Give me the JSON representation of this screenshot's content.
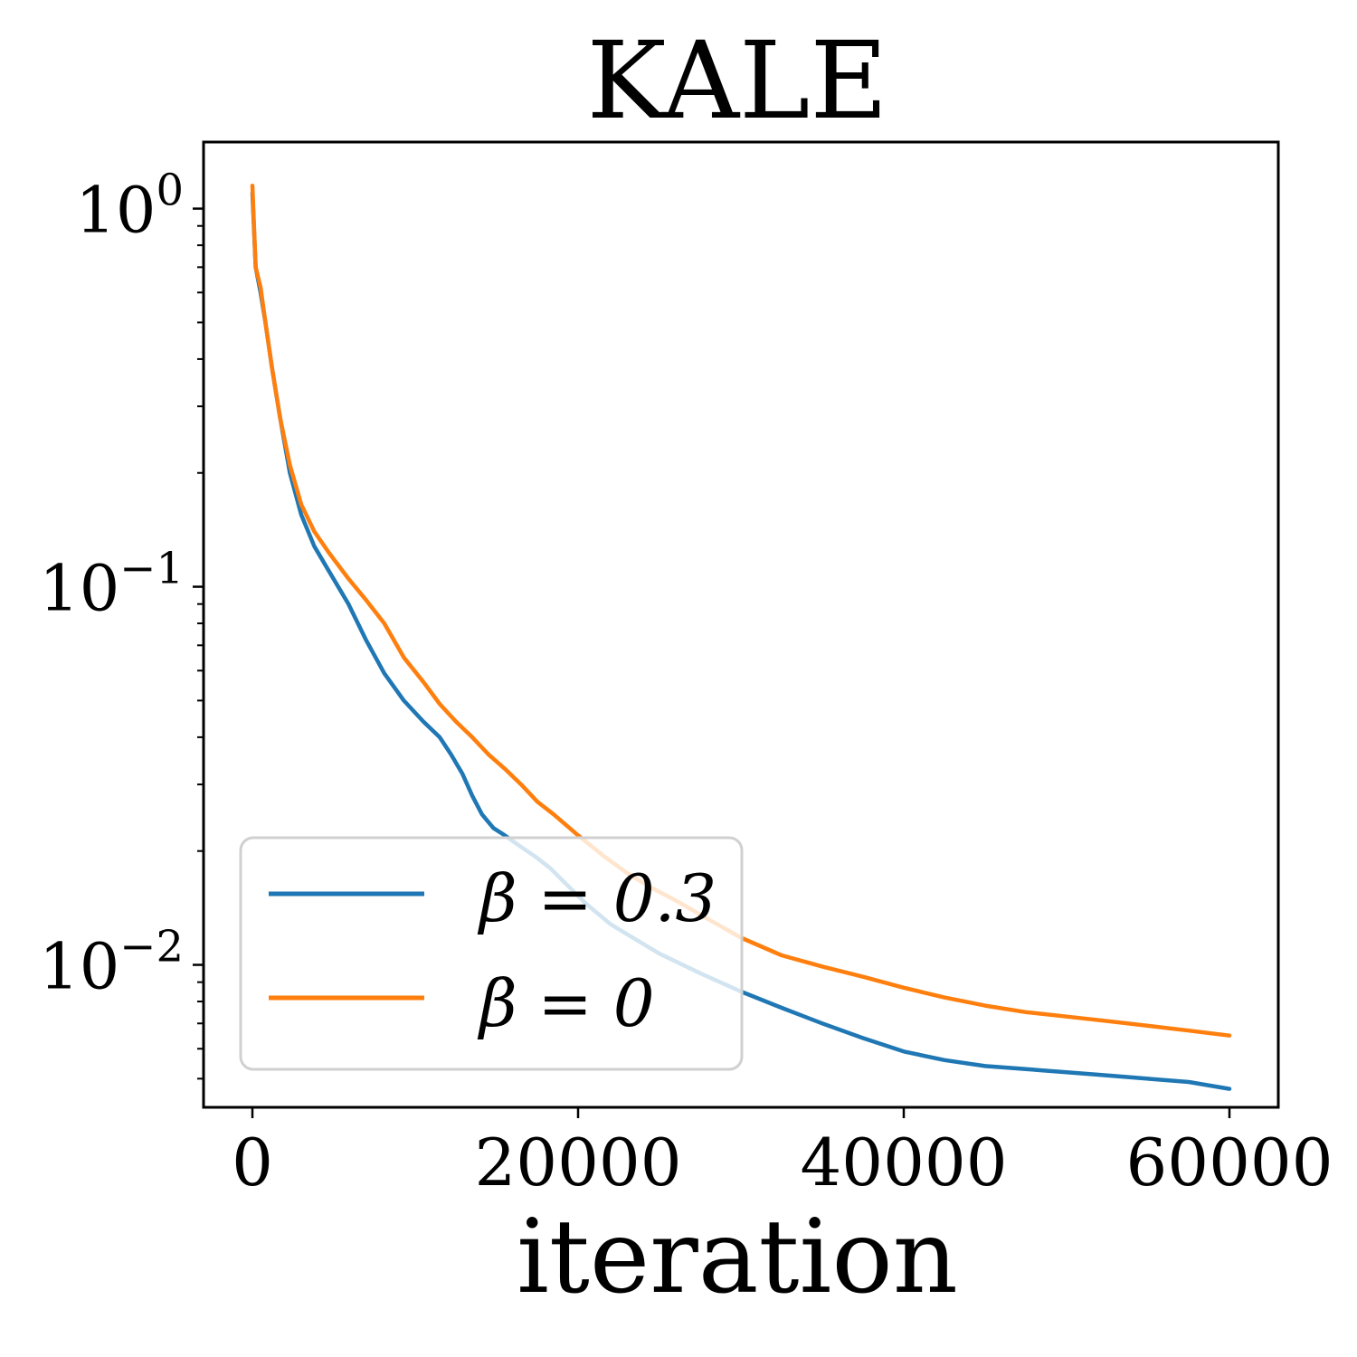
{
  "chart_data": {
    "type": "line",
    "title": "KALE",
    "xlabel": "iteration",
    "ylabel": "",
    "y_scale": "log",
    "xlim": [
      -3000,
      63000
    ],
    "ylim": [
      0.0042,
      1.5
    ],
    "x_ticks": [
      {
        "value": 0,
        "label": "0"
      },
      {
        "value": 20000,
        "label": "20000"
      },
      {
        "value": 40000,
        "label": "40000"
      },
      {
        "value": 60000,
        "label": "60000"
      }
    ],
    "y_ticks": [
      {
        "value": 1,
        "base": "10",
        "exp": "0"
      },
      {
        "value": 0.1,
        "base": "10",
        "exp": "−1"
      },
      {
        "value": 0.01,
        "base": "10",
        "exp": "−2"
      }
    ],
    "grid": false,
    "legend_position": "lower-left",
    "series": [
      {
        "name": "β = 0.3",
        "color": "#1f77b4",
        "x": [
          0,
          200,
          500,
          800,
          1200,
          1700,
          2300,
          3000,
          3800,
          4700,
          5900,
          7000,
          8100,
          9300,
          10500,
          11500,
          12200,
          12900,
          13500,
          14100,
          14800,
          15500,
          16500,
          17400,
          18300,
          19300,
          20500,
          22000,
          23500,
          25000,
          27500,
          30000,
          32500,
          35000,
          37500,
          40000,
          42500,
          45000,
          47500,
          50000,
          52500,
          55000,
          57500,
          60000
        ],
        "y": [
          1.1,
          0.7,
          0.6,
          0.5,
          0.38,
          0.28,
          0.2,
          0.155,
          0.128,
          0.11,
          0.09,
          0.072,
          0.059,
          0.05,
          0.044,
          0.04,
          0.036,
          0.032,
          0.028,
          0.025,
          0.023,
          0.022,
          0.0205,
          0.0193,
          0.018,
          0.0163,
          0.0145,
          0.0128,
          0.0117,
          0.0107,
          0.0095,
          0.0085,
          0.0077,
          0.007,
          0.0064,
          0.0059,
          0.0056,
          0.0054,
          0.0053,
          0.0052,
          0.0051,
          0.005,
          0.0049,
          0.0047
        ]
      },
      {
        "name": "β = 0",
        "color": "#ff7f0e",
        "x": [
          0,
          200,
          500,
          800,
          1200,
          1700,
          2300,
          3000,
          3800,
          4700,
          5900,
          7000,
          8100,
          9300,
          10500,
          11500,
          12500,
          13500,
          14500,
          15500,
          16500,
          17500,
          18500,
          20000,
          21500,
          23000,
          24500,
          26000,
          28000,
          30000,
          32500,
          35000,
          37500,
          40000,
          42500,
          45000,
          47500,
          50000,
          52500,
          55000,
          57500,
          60000
        ],
        "y": [
          1.15,
          0.7,
          0.62,
          0.5,
          0.38,
          0.28,
          0.21,
          0.165,
          0.14,
          0.123,
          0.105,
          0.092,
          0.08,
          0.065,
          0.056,
          0.049,
          0.044,
          0.04,
          0.036,
          0.033,
          0.03,
          0.027,
          0.025,
          0.022,
          0.0195,
          0.0175,
          0.016,
          0.0148,
          0.0132,
          0.0118,
          0.0106,
          0.0099,
          0.0093,
          0.0087,
          0.0082,
          0.0078,
          0.0075,
          0.0073,
          0.0071,
          0.0069,
          0.0067,
          0.0065
        ]
      }
    ]
  }
}
